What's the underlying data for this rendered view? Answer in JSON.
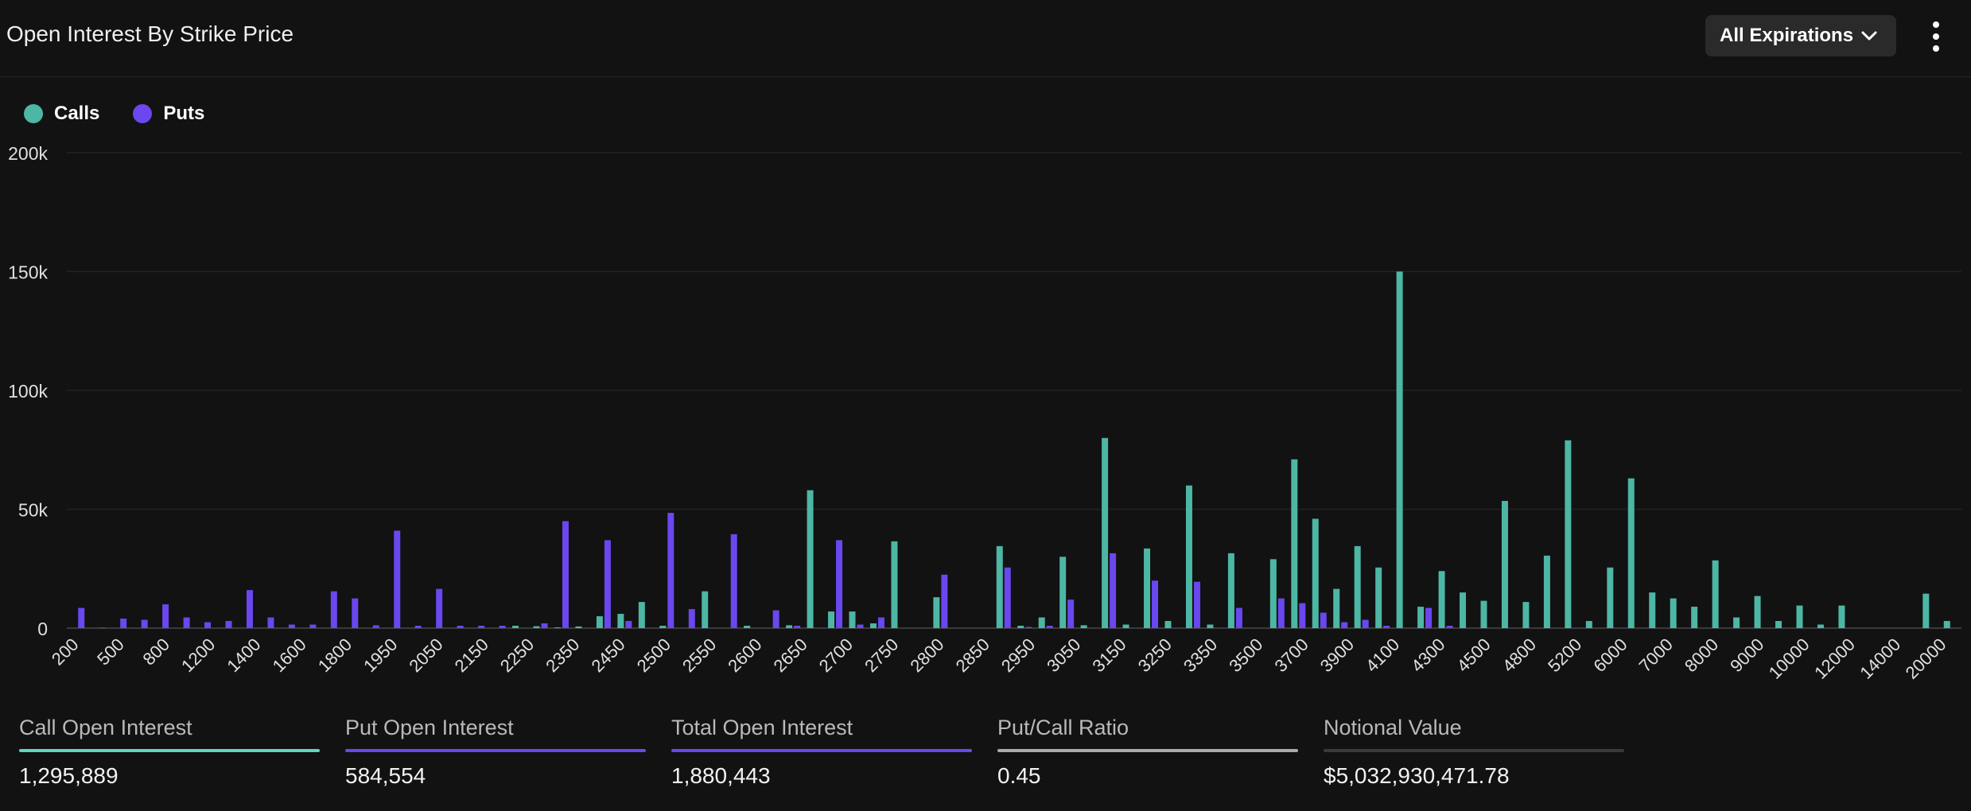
{
  "header": {
    "title": "Open Interest By Strike Price",
    "expiration_label": "All Expirations",
    "menu_icon": "more-vertical-icon",
    "dropdown_icon": "chevron-down-icon"
  },
  "colors": {
    "calls": "#4db6a4",
    "puts": "#6a47ee",
    "background": "#121212",
    "grid": "#232323",
    "ratio": "#a8aca6",
    "notional": "#3a3a3a",
    "call_stat": "#5ed6c0"
  },
  "legend": {
    "calls_label": "Calls",
    "puts_label": "Puts"
  },
  "chart_data": {
    "type": "bar",
    "title": "Open Interest By Strike Price",
    "xlabel": "",
    "ylabel": "",
    "ylim": [
      0,
      200000
    ],
    "yticks": [
      "0",
      "50k",
      "100k",
      "150k",
      "200k"
    ],
    "ytick_values": [
      0,
      50000,
      100000,
      150000,
      200000
    ],
    "tick_labels": [
      "200",
      "500",
      "800",
      "1200",
      "1400",
      "1600",
      "1800",
      "1950",
      "2050",
      "2150",
      "2250",
      "2350",
      "2450",
      "2500",
      "2550",
      "2600",
      "2650",
      "2700",
      "2750",
      "2800",
      "2850",
      "2950",
      "3050",
      "3150",
      "3250",
      "3350",
      "3500",
      "3700",
      "3900",
      "4100",
      "4300",
      "4500",
      "4800",
      "5200",
      "6000",
      "7000",
      "8000",
      "9000",
      "10000",
      "12000",
      "14000",
      "20000"
    ],
    "legend_position": "top-left",
    "grid": true,
    "series": [
      {
        "name": "Calls",
        "values": [
          0,
          0,
          0,
          0,
          0,
          0,
          0,
          0,
          0,
          0,
          0,
          0,
          0,
          0,
          0,
          0,
          0,
          0,
          0,
          0,
          0,
          1000,
          800,
          300,
          700,
          5000,
          6000,
          11000,
          1000,
          0,
          15500,
          0,
          1000,
          0,
          1200,
          58000,
          7000,
          7000,
          2000,
          36500,
          0,
          13000,
          0,
          0,
          34500,
          1000,
          4500,
          30000,
          1200,
          80000,
          1500,
          33500,
          3000,
          60000,
          1500,
          31500,
          0,
          29000,
          71000,
          46000,
          16500,
          34500,
          25500,
          150000,
          9000,
          24000,
          15000,
          11500,
          53500,
          11000,
          30500,
          79000,
          3000,
          25500,
          63000,
          15000,
          12500,
          9000,
          28500,
          4500,
          13500,
          3000,
          9500,
          1500,
          9500,
          0,
          0,
          0,
          14500,
          3000
        ]
      },
      {
        "name": "Puts",
        "values": [
          8500,
          200,
          4000,
          3500,
          10000,
          4500,
          2500,
          3000,
          16000,
          4500,
          1500,
          1500,
          15500,
          12500,
          1200,
          41000,
          1000,
          16500,
          1000,
          1000,
          1000,
          0,
          2000,
          45000,
          0,
          37000,
          3000,
          0,
          48500,
          8000,
          0,
          39500,
          0,
          7500,
          1000,
          0,
          37000,
          1500,
          4500,
          0,
          0,
          22500,
          0,
          0,
          25500,
          500,
          1000,
          12000,
          0,
          31500,
          0,
          20000,
          0,
          19500,
          0,
          8500,
          0,
          12500,
          10500,
          6500,
          2500,
          3500,
          1000,
          0,
          8500,
          1000,
          0,
          0,
          0,
          0,
          0,
          0,
          0,
          0,
          0,
          0,
          0,
          0,
          0,
          0,
          0,
          0,
          0,
          0,
          0,
          0,
          0,
          0,
          0,
          0
        ]
      }
    ]
  },
  "stats": [
    {
      "label": "Call Open Interest",
      "value": "1,295,889"
    },
    {
      "label": "Put Open Interest",
      "value": "584,554"
    },
    {
      "label": "Total Open Interest",
      "value": "1,880,443"
    },
    {
      "label": "Put/Call Ratio",
      "value": "0.45"
    },
    {
      "label": "Notional Value",
      "value": "$5,032,930,471.78"
    }
  ]
}
